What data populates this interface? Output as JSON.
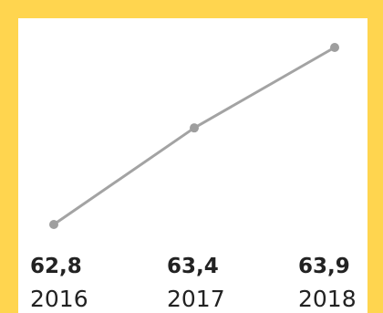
{
  "colors": {
    "frame": "#FFD54F",
    "line": "#A3A3A3",
    "marker": "#9E9E9E",
    "text": "#222222"
  },
  "chart_data": {
    "type": "line",
    "categories": [
      "2016",
      "2017",
      "2018"
    ],
    "values": [
      62.8,
      63.4,
      63.9
    ],
    "data_labels": [
      "62,8",
      "63,4",
      "63,9"
    ],
    "title": "",
    "xlabel": "",
    "ylabel": "",
    "ylim": [
      62.7,
      64.0
    ],
    "grid": false,
    "legend": "none"
  }
}
